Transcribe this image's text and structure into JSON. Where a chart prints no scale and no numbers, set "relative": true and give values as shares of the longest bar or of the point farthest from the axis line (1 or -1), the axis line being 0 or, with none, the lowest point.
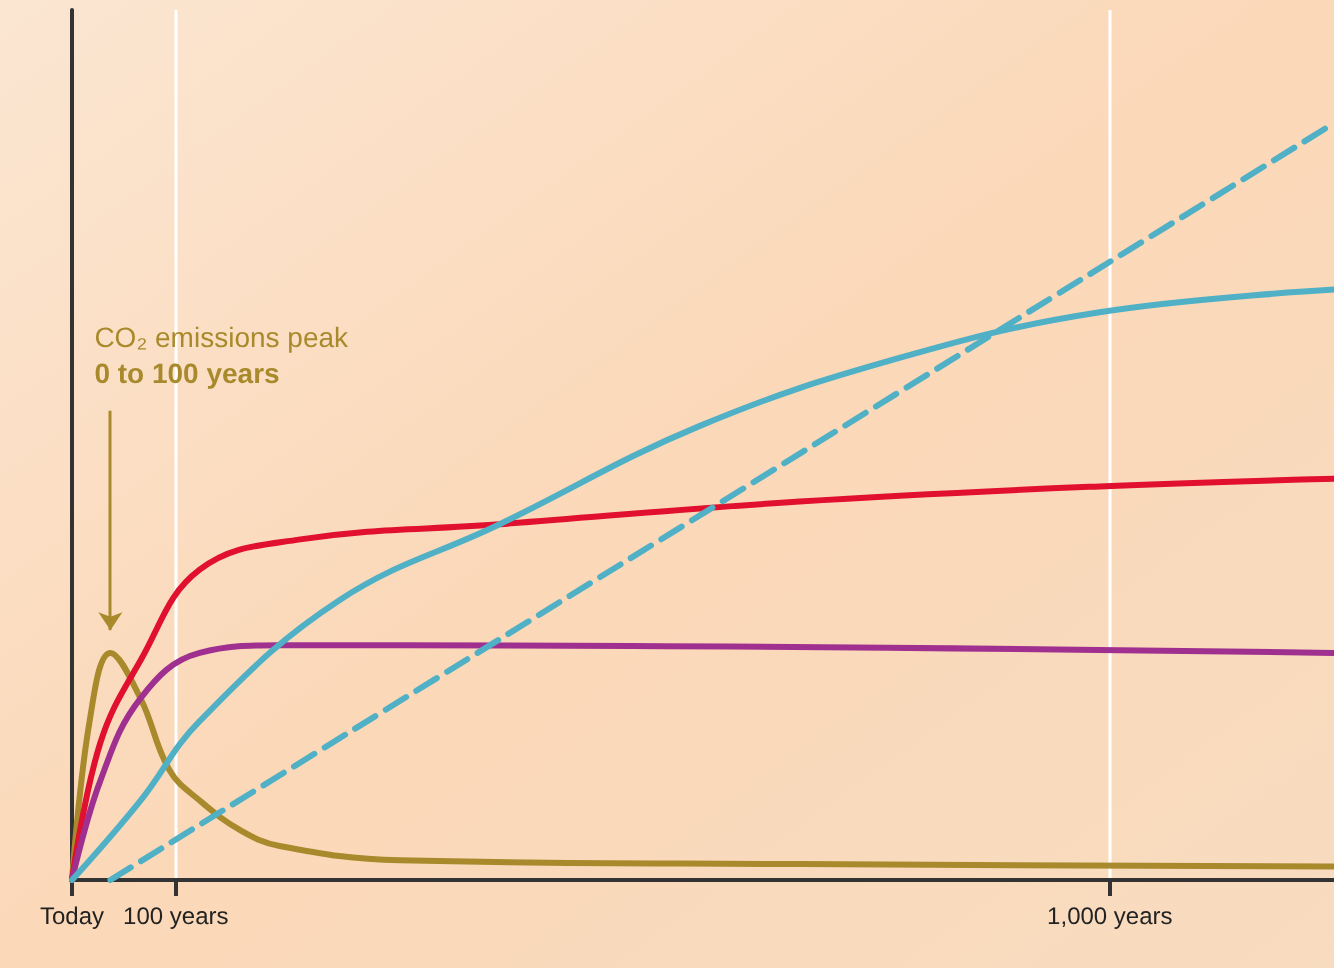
{
  "chart_data": {
    "type": "line",
    "relative": true,
    "xlim": [
      0,
      1216
    ],
    "xticks": [
      {
        "value": 0,
        "label": "Today"
      },
      {
        "value": 100,
        "label": "100 years"
      },
      {
        "value": 1000,
        "label": "1,000 years"
      }
    ],
    "grid": "x",
    "marker": "none",
    "annotations": [
      "CO₂ emissions peak",
      "0 to 100 years"
    ],
    "series": [
      {
        "color": "#a88a2c",
        "x": [
          0,
          17,
          37,
          66,
          94,
          123,
          162,
          200,
          316,
          701,
          1216
        ],
        "values": [
          0,
          0.21,
          0.3,
          0.24,
          0.145,
          0.105,
          0.066,
          0.045,
          0.026,
          0.021,
          0.018
        ]
      },
      {
        "color": "#e0102e",
        "x": [
          0,
          27,
          66,
          123,
          220,
          412,
          701,
          990,
          1216
        ],
        "values": [
          0,
          0.18,
          0.29,
          0.41,
          0.45,
          0.47,
          0.5,
          0.52,
          0.53
        ]
      },
      {
        "color": "#a0308f",
        "x": [
          0,
          27,
          66,
          123,
          200,
          316,
          1216
        ],
        "values": [
          0,
          0.13,
          0.24,
          0.3,
          0.31,
          0.31,
          0.3
        ]
      },
      {
        "color": "#4fb0c6",
        "x": [
          0,
          66,
          123,
          258,
          412,
          605,
          798,
          990,
          1216
        ],
        "values": [
          0,
          0.105,
          0.21,
          0.37,
          0.47,
          0.6,
          0.69,
          0.75,
          0.78
        ]
      },
      {
        "color": "#4fb0c6",
        "line_style": "dashed",
        "x": [
          37,
          1216
        ],
        "values": [
          0,
          1
        ]
      }
    ]
  }
}
